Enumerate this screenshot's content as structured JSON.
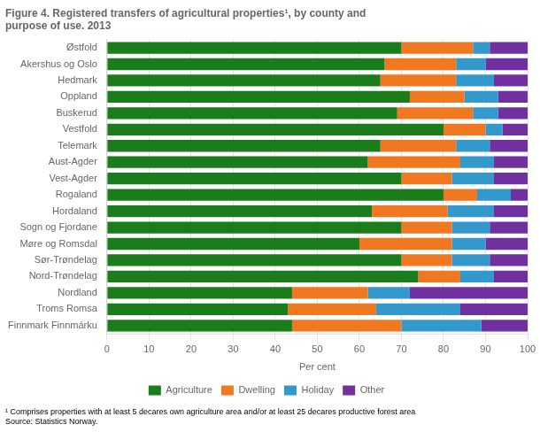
{
  "chart_data": {
    "type": "bar",
    "orientation": "horizontal",
    "stacked": true,
    "title": [
      "Figure 4. Registered transfers of agricultural properties¹, by county and",
      "purpose of use. 2013"
    ],
    "annotations": [
      "¹ Comprises properties with at least 5 decares own agriculture area and/or at least 25 decares productive forest area",
      "Source: Statistics Norway."
    ],
    "categories": [
      "Østfold",
      "Akershus og Oslo",
      "Hedmark",
      "Oppland",
      "Buskerud",
      "Vestfold",
      "Telemark",
      "Aust-Agder",
      "Vest-Agder",
      "Rogaland",
      "Hordaland",
      "Sogn og Fjordane",
      "Møre og Romsdal",
      "Sør-Trøndelag",
      "Nord-Trøndelag",
      "Nordland",
      "Troms Romsa",
      "Finnmark Finnmárku"
    ],
    "series": [
      {
        "name": "Agriculture",
        "color": "#1a7c1a",
        "values": [
          70,
          66,
          65,
          72,
          69,
          80,
          65,
          62,
          70,
          80,
          63,
          70,
          60,
          70,
          74,
          44,
          43,
          44
        ]
      },
      {
        "name": "Dwelling",
        "color": "#f07820",
        "values": [
          17,
          17,
          18,
          13,
          18,
          10,
          18,
          22,
          12,
          8,
          18,
          12,
          22,
          12,
          10,
          18,
          21,
          26
        ]
      },
      {
        "name": "Holiday",
        "color": "#3399cc",
        "values": [
          4,
          7,
          9,
          8,
          6,
          4,
          8,
          8,
          10,
          8,
          11,
          9,
          8,
          9,
          8,
          10,
          20,
          19
        ]
      },
      {
        "name": "Other",
        "color": "#7030a0",
        "values": [
          9,
          10,
          8,
          7,
          7,
          6,
          9,
          8,
          8,
          4,
          8,
          9,
          10,
          9,
          8,
          28,
          16,
          11
        ]
      }
    ],
    "xlabel": "Per cent",
    "xlim": [
      0,
      100
    ],
    "xticks": [
      0,
      10,
      20,
      30,
      40,
      50,
      60,
      70,
      80,
      90,
      100
    ],
    "grid": true,
    "legend": "bottom"
  }
}
